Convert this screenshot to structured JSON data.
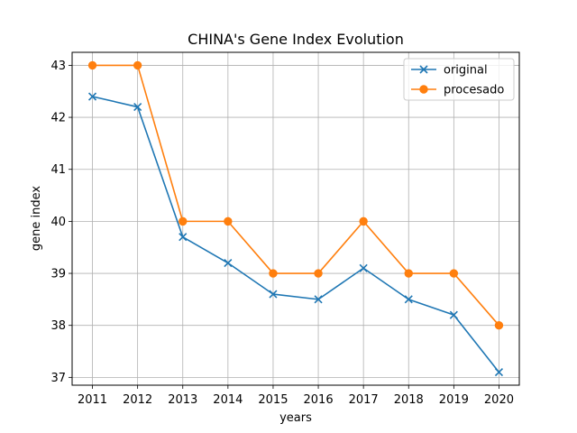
{
  "chart_data": {
    "type": "line",
    "title": "CHINA's Gene Index Evolution",
    "xlabel": "years",
    "ylabel": "gene index",
    "x": [
      2011,
      2012,
      2013,
      2014,
      2015,
      2016,
      2017,
      2018,
      2019,
      2020
    ],
    "xlim": [
      2010.55,
      2020.45
    ],
    "ylim": [
      36.85,
      43.25
    ],
    "yticks": [
      37,
      38,
      39,
      40,
      41,
      42,
      43
    ],
    "grid": true,
    "legend_position": "top-right",
    "series": [
      {
        "name": "original",
        "values": [
          42.4,
          42.2,
          39.7,
          39.2,
          38.6,
          38.5,
          39.1,
          38.5,
          38.2,
          37.1
        ],
        "color": "#1f77b4",
        "marker": "x"
      },
      {
        "name": "procesado",
        "values": [
          43,
          43,
          40,
          40,
          39,
          39,
          40,
          39,
          39,
          38
        ],
        "color": "#ff7f0e",
        "marker": "circle"
      }
    ]
  }
}
